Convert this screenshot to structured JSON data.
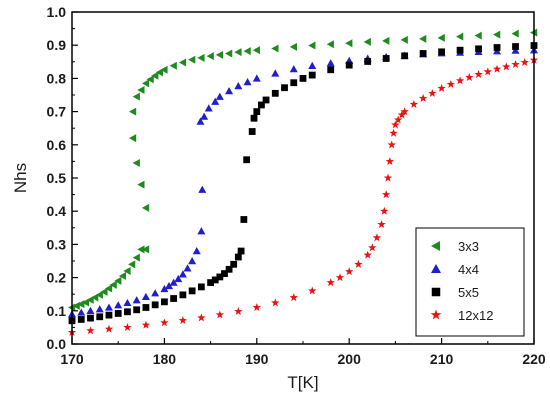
{
  "chart_data": {
    "type": "scatter",
    "xlabel": "T[K]",
    "ylabel": "Nhs",
    "xlim": [
      170,
      220
    ],
    "ylim": [
      0.0,
      1.0
    ],
    "xticks": [
      170,
      180,
      190,
      200,
      210,
      220
    ],
    "yticks": [
      "0.0",
      "0.1",
      "0.2",
      "0.3",
      "0.4",
      "0.5",
      "0.6",
      "0.7",
      "0.8",
      "0.9",
      "1.0"
    ],
    "grid": false,
    "legend_position": "bottom-right",
    "series": [
      {
        "name": "3x3",
        "marker": "triangle-left",
        "color": "#1f8a1f",
        "points": [
          [
            170.0,
            0.11
          ],
          [
            170.5,
            0.115
          ],
          [
            171.0,
            0.12
          ],
          [
            171.5,
            0.125
          ],
          [
            172.0,
            0.133
          ],
          [
            172.5,
            0.14
          ],
          [
            173.0,
            0.148
          ],
          [
            173.5,
            0.157
          ],
          [
            174.0,
            0.167
          ],
          [
            174.5,
            0.178
          ],
          [
            175.0,
            0.19
          ],
          [
            175.5,
            0.205
          ],
          [
            176.0,
            0.22
          ],
          [
            176.5,
            0.24
          ],
          [
            177.0,
            0.26
          ],
          [
            177.5,
            0.285
          ],
          [
            178.0,
            0.285
          ],
          [
            178.0,
            0.41
          ],
          [
            177.5,
            0.48
          ],
          [
            177.0,
            0.545
          ],
          [
            176.6,
            0.62
          ],
          [
            176.6,
            0.7
          ],
          [
            177.0,
            0.745
          ],
          [
            177.5,
            0.765
          ],
          [
            178.0,
            0.785
          ],
          [
            178.5,
            0.797
          ],
          [
            179.0,
            0.808
          ],
          [
            179.5,
            0.818
          ],
          [
            180.0,
            0.826
          ],
          [
            181.0,
            0.838
          ],
          [
            182.0,
            0.848
          ],
          [
            183.0,
            0.856
          ],
          [
            184.0,
            0.862
          ],
          [
            185.0,
            0.867
          ],
          [
            186.0,
            0.871
          ],
          [
            187.0,
            0.875
          ],
          [
            188.0,
            0.879
          ],
          [
            189.0,
            0.882
          ],
          [
            190.0,
            0.885
          ],
          [
            192.0,
            0.89
          ],
          [
            194.0,
            0.895
          ],
          [
            196.0,
            0.899
          ],
          [
            198.0,
            0.903
          ],
          [
            200.0,
            0.906
          ],
          [
            202.0,
            0.91
          ],
          [
            204.0,
            0.913
          ],
          [
            206.0,
            0.916
          ],
          [
            208.0,
            0.919
          ],
          [
            210.0,
            0.922
          ],
          [
            212.0,
            0.926
          ],
          [
            214.0,
            0.929
          ],
          [
            216.0,
            0.932
          ],
          [
            218.0,
            0.935
          ],
          [
            220.0,
            0.938
          ]
        ]
      },
      {
        "name": "4x4",
        "marker": "triangle-up",
        "color": "#1f1fcc",
        "points": [
          [
            170.0,
            0.09
          ],
          [
            171.0,
            0.095
          ],
          [
            172.0,
            0.1
          ],
          [
            173.0,
            0.105
          ],
          [
            174.0,
            0.11
          ],
          [
            175.0,
            0.117
          ],
          [
            176.0,
            0.124
          ],
          [
            177.0,
            0.132
          ],
          [
            178.0,
            0.142
          ],
          [
            179.0,
            0.153
          ],
          [
            180.0,
            0.166
          ],
          [
            180.5,
            0.175
          ],
          [
            181.0,
            0.185
          ],
          [
            181.5,
            0.196
          ],
          [
            182.0,
            0.21
          ],
          [
            182.5,
            0.228
          ],
          [
            183.0,
            0.25
          ],
          [
            183.5,
            0.28
          ],
          [
            184.0,
            0.34
          ],
          [
            184.1,
            0.465
          ],
          [
            183.9,
            0.67
          ],
          [
            184.3,
            0.685
          ],
          [
            184.8,
            0.71
          ],
          [
            185.5,
            0.73
          ],
          [
            186.0,
            0.745
          ],
          [
            187.0,
            0.762
          ],
          [
            188.0,
            0.777
          ],
          [
            189.0,
            0.789
          ],
          [
            190.0,
            0.8
          ],
          [
            192.0,
            0.815
          ],
          [
            194.0,
            0.828
          ],
          [
            196.0,
            0.838
          ],
          [
            198.0,
            0.846
          ],
          [
            200.0,
            0.853
          ],
          [
            202.0,
            0.86
          ],
          [
            204.0,
            0.865
          ],
          [
            206.0,
            0.869
          ],
          [
            208.0,
            0.873
          ],
          [
            210.0,
            0.876
          ],
          [
            212.0,
            0.878
          ],
          [
            214.0,
            0.88
          ],
          [
            216.0,
            0.882
          ],
          [
            218.0,
            0.884
          ],
          [
            220.0,
            0.885
          ]
        ]
      },
      {
        "name": "5x5",
        "marker": "square",
        "color": "#000000",
        "points": [
          [
            170.0,
            0.07
          ],
          [
            171.0,
            0.074
          ],
          [
            172.0,
            0.078
          ],
          [
            173.0,
            0.082
          ],
          [
            174.0,
            0.087
          ],
          [
            175.0,
            0.092
          ],
          [
            176.0,
            0.097
          ],
          [
            177.0,
            0.103
          ],
          [
            178.0,
            0.11
          ],
          [
            179.0,
            0.118
          ],
          [
            180.0,
            0.127
          ],
          [
            181.0,
            0.137
          ],
          [
            182.0,
            0.148
          ],
          [
            183.0,
            0.16
          ],
          [
            184.0,
            0.172
          ],
          [
            185.0,
            0.185
          ],
          [
            185.5,
            0.193
          ],
          [
            186.0,
            0.202
          ],
          [
            186.5,
            0.212
          ],
          [
            187.0,
            0.225
          ],
          [
            187.5,
            0.24
          ],
          [
            188.0,
            0.262
          ],
          [
            188.3,
            0.28
          ],
          [
            188.6,
            0.375
          ],
          [
            188.9,
            0.555
          ],
          [
            189.5,
            0.64
          ],
          [
            189.7,
            0.68
          ],
          [
            190.0,
            0.7
          ],
          [
            190.5,
            0.72
          ],
          [
            191.0,
            0.735
          ],
          [
            192.0,
            0.755
          ],
          [
            193.0,
            0.772
          ],
          [
            194.0,
            0.787
          ],
          [
            195.0,
            0.8
          ],
          [
            196.0,
            0.81
          ],
          [
            198.0,
            0.826
          ],
          [
            200.0,
            0.84
          ],
          [
            202.0,
            0.851
          ],
          [
            204.0,
            0.86
          ],
          [
            206.0,
            0.868
          ],
          [
            208.0,
            0.875
          ],
          [
            210.0,
            0.88
          ],
          [
            212.0,
            0.885
          ],
          [
            214.0,
            0.889
          ],
          [
            216.0,
            0.893
          ],
          [
            218.0,
            0.896
          ],
          [
            220.0,
            0.899
          ]
        ]
      },
      {
        "name": "12x12",
        "marker": "star",
        "color": "#ee1111",
        "points": [
          [
            170.0,
            0.035
          ],
          [
            172.0,
            0.04
          ],
          [
            174.0,
            0.045
          ],
          [
            176.0,
            0.05
          ],
          [
            178.0,
            0.057
          ],
          [
            180.0,
            0.064
          ],
          [
            182.0,
            0.071
          ],
          [
            184.0,
            0.079
          ],
          [
            186.0,
            0.088
          ],
          [
            188.0,
            0.098
          ],
          [
            190.0,
            0.11
          ],
          [
            192.0,
            0.124
          ],
          [
            194.0,
            0.14
          ],
          [
            196.0,
            0.16
          ],
          [
            198.0,
            0.185
          ],
          [
            199.0,
            0.2
          ],
          [
            200.0,
            0.218
          ],
          [
            201.0,
            0.24
          ],
          [
            202.0,
            0.268
          ],
          [
            202.5,
            0.29
          ],
          [
            203.0,
            0.32
          ],
          [
            203.5,
            0.36
          ],
          [
            203.8,
            0.4
          ],
          [
            204.0,
            0.45
          ],
          [
            204.2,
            0.5
          ],
          [
            204.4,
            0.55
          ],
          [
            204.6,
            0.6
          ],
          [
            204.8,
            0.635
          ],
          [
            205.0,
            0.66
          ],
          [
            205.3,
            0.675
          ],
          [
            205.7,
            0.69
          ],
          [
            206.0,
            0.7
          ],
          [
            207.0,
            0.722
          ],
          [
            208.0,
            0.74
          ],
          [
            209.0,
            0.755
          ],
          [
            210.0,
            0.77
          ],
          [
            211.0,
            0.782
          ],
          [
            212.0,
            0.793
          ],
          [
            213.0,
            0.803
          ],
          [
            214.0,
            0.812
          ],
          [
            215.0,
            0.82
          ],
          [
            216.0,
            0.828
          ],
          [
            217.0,
            0.835
          ],
          [
            218.0,
            0.842
          ],
          [
            219.0,
            0.848
          ],
          [
            220.0,
            0.855
          ]
        ]
      }
    ]
  }
}
